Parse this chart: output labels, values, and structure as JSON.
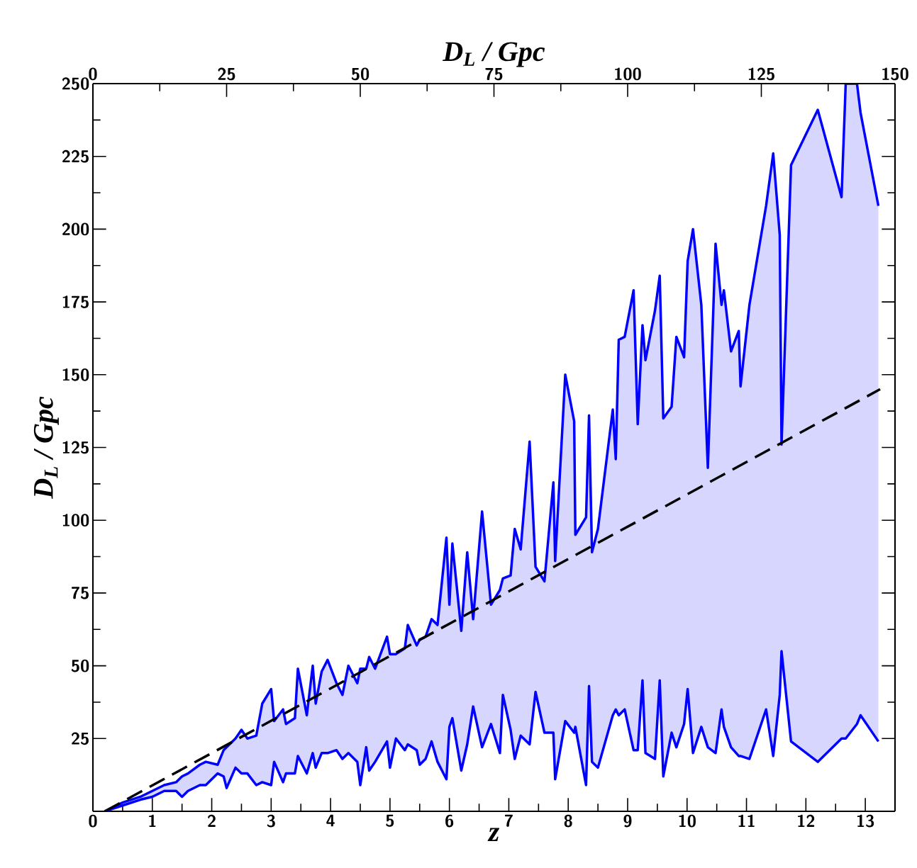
{
  "chart_data": {
    "type": "line",
    "xlabel": "z",
    "ylabel": "D$_{L}$ / Gpc",
    "x2label": "D$_{L}$ / Gpc",
    "xlim": [
      0,
      13.5
    ],
    "xticks": [
      0,
      1,
      2,
      3,
      4,
      5,
      6,
      7,
      8,
      9,
      10,
      11,
      12,
      13
    ],
    "ylim": [
      0,
      250
    ],
    "yticks": [
      25,
      50,
      75,
      100,
      125,
      150,
      175,
      200,
      225,
      250
    ],
    "x2lim": [
      0,
      150
    ],
    "x2ticks": [
      0,
      25,
      50,
      75,
      100,
      125,
      150
    ],
    "marker": "none",
    "series": [
      {
        "color": "#0000ff",
        "line_style": "solid",
        "x": [
          0.2,
          0.5,
          0.8,
          1.0,
          1.2,
          1.4,
          1.5,
          1.6,
          1.8,
          1.9,
          2.1,
          2.2,
          2.25,
          2.4,
          2.5,
          2.6,
          2.75,
          2.85,
          3.0,
          3.05,
          3.2,
          3.25,
          3.4,
          3.45,
          3.6,
          3.7,
          3.75,
          3.85,
          3.95,
          4.1,
          4.2,
          4.3,
          4.45,
          4.5,
          4.6,
          4.65,
          4.75,
          4.95,
          5.0,
          5.1,
          5.25,
          5.3,
          5.45,
          5.5,
          5.6,
          5.7,
          5.8,
          5.95,
          6.0,
          6.05,
          6.2,
          6.3,
          6.4,
          6.55,
          6.7,
          6.85,
          6.9,
          7.03,
          7.1,
          7.2,
          7.35,
          7.45,
          7.6,
          7.75,
          7.78,
          7.95,
          8.1,
          8.12,
          8.3,
          8.35,
          8.4,
          8.5,
          8.75,
          8.8,
          8.85,
          8.95,
          9.1,
          9.17,
          9.25,
          9.3,
          9.46,
          9.54,
          9.6,
          9.74,
          9.82,
          9.95,
          10.01,
          10.1,
          10.24,
          10.35,
          10.48,
          10.58,
          10.62,
          10.74,
          10.87,
          10.9,
          11.05,
          11.33,
          11.45,
          11.56,
          11.59,
          11.75,
          12.2,
          12.6,
          12.67,
          12.86,
          12.92,
          13.22
        ],
        "lower": [
          0,
          2,
          4,
          5,
          7,
          7,
          5,
          7,
          9,
          9,
          13,
          12,
          8,
          15,
          13,
          13,
          9,
          10,
          9,
          17,
          10,
          13,
          13,
          19,
          13,
          20,
          15,
          20,
          20,
          21,
          18,
          20,
          17,
          9,
          22,
          14,
          17,
          24,
          15,
          25,
          21,
          23,
          21,
          16,
          18,
          24,
          17,
          11,
          29,
          32,
          14,
          23,
          36,
          22,
          30,
          20,
          40,
          28,
          18,
          26,
          23,
          41,
          27,
          27,
          11,
          31,
          27,
          29,
          9,
          43,
          17,
          15,
          33,
          35,
          33,
          35,
          21,
          21,
          45,
          20,
          18,
          45,
          12,
          27,
          22,
          30,
          42,
          20,
          29,
          22,
          20,
          35,
          29,
          22,
          19,
          19,
          18,
          35,
          19,
          40,
          55,
          24,
          17,
          25,
          25,
          30,
          33,
          24
        ],
        "upper": [
          0,
          3,
          5,
          7,
          9,
          10,
          12,
          13,
          16,
          17,
          16,
          21,
          22,
          25,
          28,
          25,
          26,
          37,
          42,
          31,
          35,
          30,
          32,
          49,
          33,
          50,
          37,
          48,
          52,
          44,
          40,
          50,
          44,
          49,
          49,
          53,
          49,
          60,
          54,
          54,
          56,
          64,
          57,
          59,
          60,
          66,
          64,
          94,
          71,
          92,
          62,
          89,
          66,
          103,
          71,
          76,
          80,
          81,
          97,
          90,
          127,
          84,
          79,
          113,
          86,
          150,
          134,
          95,
          101,
          136,
          89,
          97,
          138,
          121,
          162,
          163,
          179,
          133,
          167,
          155,
          172,
          184,
          135,
          139,
          163,
          156,
          189,
          200,
          174,
          118,
          195,
          174,
          179,
          158,
          165,
          146,
          174,
          208,
          226,
          198,
          126,
          222,
          241,
          211,
          250,
          250,
          240,
          208
        ],
        "values": [
          0,
          3,
          5,
          7,
          9,
          10,
          12,
          13,
          16,
          17,
          16,
          21,
          22,
          25,
          28,
          25,
          26,
          37,
          42,
          31,
          35,
          30,
          32,
          49,
          33,
          50,
          37,
          48,
          52,
          44,
          40,
          50,
          44,
          49,
          49,
          53,
          49,
          60,
          54,
          54,
          56,
          64,
          57,
          59,
          60,
          66,
          64,
          94,
          71,
          92,
          62,
          89,
          66,
          103,
          71,
          76,
          80,
          81,
          97,
          90,
          127,
          84,
          79,
          113,
          86,
          150,
          134,
          95,
          101,
          136,
          89,
          97,
          138,
          121,
          162,
          163,
          179,
          133,
          167,
          155,
          172,
          184,
          135,
          139,
          163,
          156,
          189,
          200,
          174,
          118,
          195,
          174,
          179,
          158,
          165,
          146,
          174,
          208,
          226,
          198,
          126,
          222,
          241,
          211,
          250,
          250,
          240,
          208
        ]
      },
      {
        "color": "#0000ff",
        "line_style": "solid",
        "x": [
          0.2,
          0.5,
          0.8,
          1.0,
          1.2,
          1.4,
          1.5,
          1.6,
          1.8,
          1.9,
          2.1,
          2.2,
          2.25,
          2.4,
          2.5,
          2.6,
          2.75,
          2.85,
          3.0,
          3.05,
          3.2,
          3.25,
          3.4,
          3.45,
          3.6,
          3.7,
          3.75,
          3.85,
          3.95,
          4.1,
          4.2,
          4.3,
          4.45,
          4.5,
          4.6,
          4.65,
          4.75,
          4.95,
          5.0,
          5.1,
          5.25,
          5.3,
          5.45,
          5.5,
          5.6,
          5.7,
          5.8,
          5.95,
          6.0,
          6.05,
          6.2,
          6.3,
          6.4,
          6.55,
          6.7,
          6.85,
          6.9,
          7.03,
          7.1,
          7.2,
          7.35,
          7.45,
          7.6,
          7.75,
          7.78,
          7.95,
          8.1,
          8.12,
          8.3,
          8.35,
          8.4,
          8.5,
          8.75,
          8.8,
          8.85,
          8.95,
          9.1,
          9.17,
          9.25,
          9.3,
          9.46,
          9.54,
          9.6,
          9.74,
          9.82,
          9.95,
          10.01,
          10.1,
          10.24,
          10.35,
          10.48,
          10.58,
          10.62,
          10.74,
          10.87,
          10.9,
          11.05,
          11.33,
          11.45,
          11.56,
          11.59,
          11.75,
          12.2,
          12.6,
          12.67,
          12.86,
          12.92,
          13.22
        ],
        "values": [
          0,
          2,
          4,
          5,
          7,
          7,
          5,
          7,
          9,
          9,
          13,
          12,
          8,
          15,
          13,
          13,
          9,
          10,
          9,
          17,
          10,
          13,
          13,
          19,
          13,
          20,
          15,
          20,
          20,
          21,
          18,
          20,
          17,
          9,
          22,
          14,
          17,
          24,
          15,
          25,
          21,
          23,
          21,
          16,
          18,
          24,
          17,
          11,
          29,
          32,
          14,
          23,
          36,
          22,
          30,
          20,
          40,
          28,
          18,
          26,
          23,
          41,
          27,
          27,
          11,
          31,
          27,
          29,
          9,
          43,
          17,
          15,
          33,
          35,
          33,
          35,
          21,
          21,
          45,
          20,
          18,
          45,
          12,
          27,
          22,
          30,
          42,
          20,
          29,
          22,
          20,
          35,
          29,
          22,
          19,
          19,
          18,
          35,
          19,
          40,
          55,
          24,
          17,
          25,
          25,
          30,
          33,
          24
        ]
      },
      {
        "color": "#000000",
        "line_style": "dashed",
        "x": [
          0.2,
          13.25
        ],
        "values": [
          0,
          145
        ]
      }
    ]
  }
}
